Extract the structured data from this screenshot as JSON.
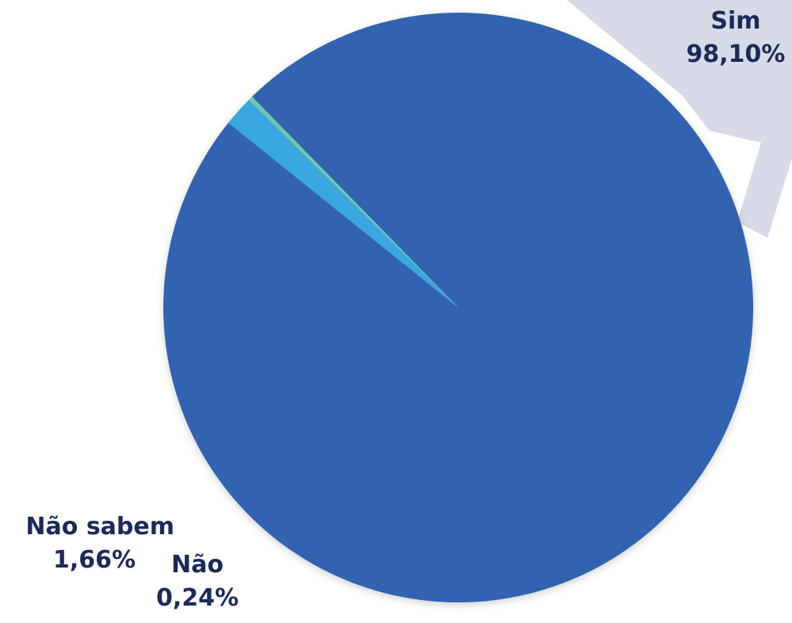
{
  "colors": {
    "backdrop": "#d7dbe8",
    "label_text": "#1a2a5a"
  },
  "chart_data": {
    "type": "pie",
    "title": "",
    "slices": [
      {
        "label": "Sim",
        "value": 98.1,
        "display": "98,10%",
        "color": "#3264b0"
      },
      {
        "label": "Não",
        "value": 0.24,
        "display": "0,24%",
        "color": "#6fc7a6"
      },
      {
        "label": "Não sabem",
        "value": 1.66,
        "display": "1,66%",
        "color": "#38a6df"
      }
    ],
    "start_angle_deg": 218.8,
    "direction": "clockwise",
    "legend": "none"
  }
}
